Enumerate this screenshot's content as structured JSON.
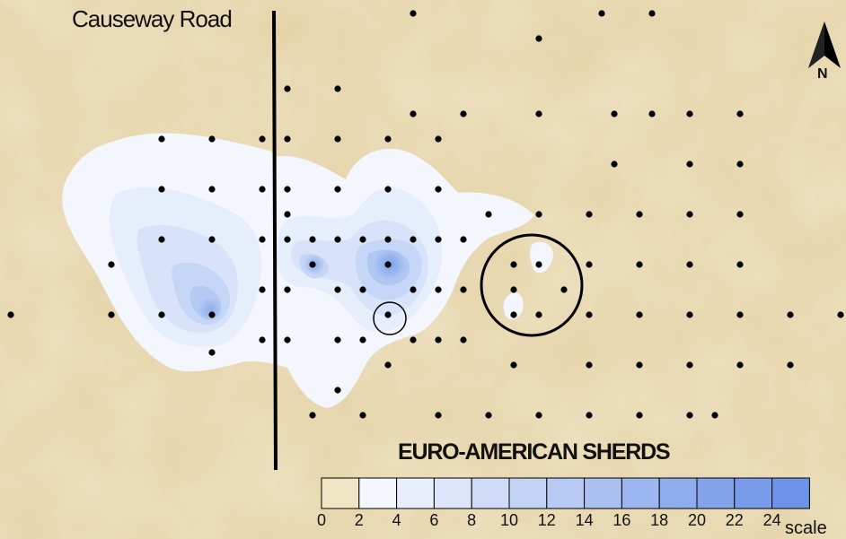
{
  "map": {
    "road_label": "Causeway Road",
    "north_label": "N",
    "colors": {
      "parchment": "#e8d9b0",
      "density_low": "#f3f6fd",
      "density_high": "#6f9ae8",
      "dots": "#000000"
    }
  },
  "legend": {
    "title": "EURO-AMERICAN SHERDS",
    "unit_label": "scale",
    "ticks": [
      "0",
      "2",
      "4",
      "6",
      "8",
      "10",
      "12",
      "14",
      "16",
      "18",
      "20",
      "22",
      "24"
    ],
    "swatch_colors": [
      "#f0e6c6",
      "#f4f7fe",
      "#e8eefb",
      "#dce5f9",
      "#d0dcf7",
      "#c3d3f5",
      "#b6caf3",
      "#a9c0f1",
      "#9cb7ef",
      "#8faded",
      "#83a4eb",
      "#789bea",
      "#6d93e8"
    ]
  }
}
